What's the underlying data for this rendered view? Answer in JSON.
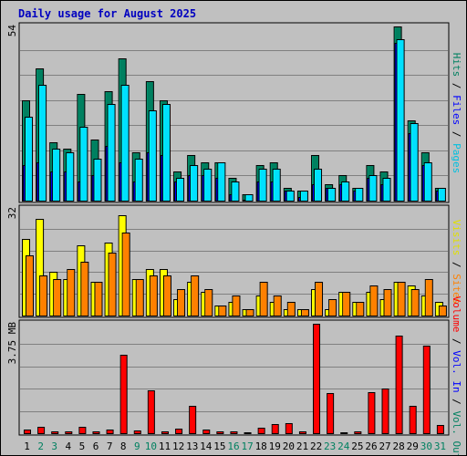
{
  "chart_data": {
    "title": "Daily usage for August 2025",
    "type": "bar",
    "categories": [
      "1",
      "2",
      "3",
      "4",
      "5",
      "6",
      "7",
      "8",
      "9",
      "10",
      "11",
      "12",
      "13",
      "14",
      "15",
      "16",
      "17",
      "18",
      "19",
      "20",
      "21",
      "22",
      "23",
      "24",
      "25",
      "26",
      "27",
      "28",
      "29",
      "30",
      "31"
    ],
    "weekend_days": [
      "2",
      "3",
      "9",
      "10",
      "16",
      "17",
      "23",
      "24",
      "30",
      "31"
    ],
    "panels": [
      {
        "id": "top",
        "scale_label": "54",
        "ymax": 54,
        "ylabel_parts": [
          {
            "text": "Hits",
            "color": "#008060"
          },
          {
            "text": " / ",
            "color": "#000000"
          },
          {
            "text": "Files",
            "color": "#0000ff"
          },
          {
            "text": " / ",
            "color": "#000000"
          },
          {
            "text": "Pages",
            "color": "#00c0e0"
          }
        ],
        "series": [
          {
            "name": "Hits",
            "color": "#008060",
            "values": [
              31,
              41,
              18,
              16,
              33,
              19,
              34,
              44,
              15,
              37,
              31,
              9,
              14,
              12,
              12,
              7,
              2,
              11,
              12,
              4,
              3,
              14,
              5,
              8,
              4,
              11,
              9,
              54,
              25,
              15,
              4
            ]
          },
          {
            "name": "Files",
            "color": "#0000ff",
            "values": [
              11,
              12,
              9,
              9,
              6,
              8,
              17,
              12,
              6,
              15,
              14,
              6,
              8,
              8,
              7,
              2,
              0,
              6,
              6,
              3,
              1,
              5,
              4,
              5,
              3,
              7,
              5,
              49,
              21,
              11,
              3
            ]
          },
          {
            "name": "Pages",
            "color": "#00e0ff",
            "values": [
              26,
              36,
              16,
              15,
              23,
              13,
              30,
              36,
              13,
              28,
              30,
              7,
              11,
              10,
              12,
              6,
              2,
              10,
              10,
              3,
              3,
              10,
              4,
              6,
              4,
              8,
              7,
              50,
              24,
              12,
              4
            ]
          }
        ]
      },
      {
        "id": "mid",
        "scale_label": "32",
        "ymax": 32,
        "ylabel_parts": [
          {
            "text": "Visits",
            "color": "#e0e000"
          },
          {
            "text": " / ",
            "color": "#000000"
          },
          {
            "text": "Sites",
            "color": "#ff8000"
          }
        ],
        "series": [
          {
            "name": "Visits",
            "color": "#ffff00",
            "values": [
              23,
              29,
              13,
              11,
              21,
              10,
              22,
              30,
              11,
              14,
              14,
              5,
              10,
              7,
              3,
              4,
              2,
              6,
              4,
              2,
              2,
              8,
              2,
              7,
              4,
              7,
              5,
              10,
              9,
              6,
              4
            ]
          },
          {
            "name": "Sites",
            "color": "#ff8000",
            "values": [
              18,
              12,
              11,
              14,
              16,
              10,
              19,
              25,
              11,
              12,
              12,
              8,
              12,
              8,
              3,
              6,
              2,
              10,
              6,
              4,
              2,
              10,
              5,
              7,
              4,
              9,
              8,
              10,
              8,
              11,
              3
            ]
          }
        ]
      },
      {
        "id": "bot",
        "scale_label": "3.75 MB",
        "ymax": 3.75,
        "ylabel_parts": [
          {
            "text": "Volume",
            "color": "#ff0000"
          },
          {
            "text": " / ",
            "color": "#000000"
          },
          {
            "text": "Vol. In",
            "color": "#0000ff"
          },
          {
            "text": " / ",
            "color": "#000000"
          },
          {
            "text": "Vol. Out",
            "color": "#008060"
          }
        ],
        "series": [
          {
            "name": "Volume",
            "color": "#ff0000",
            "values": [
              0.12,
              0.22,
              0.05,
              0.05,
              0.22,
              0.07,
              0.14,
              2.68,
              0.08,
              1.46,
              0.07,
              0.15,
              0.95,
              0.14,
              0.05,
              0.05,
              0.04,
              0.2,
              0.3,
              0.33,
              0.05,
              3.75,
              1.38,
              0.04,
              0.06,
              1.42,
              1.52,
              3.34,
              0.93,
              3.0,
              0.28
            ]
          }
        ]
      }
    ]
  }
}
